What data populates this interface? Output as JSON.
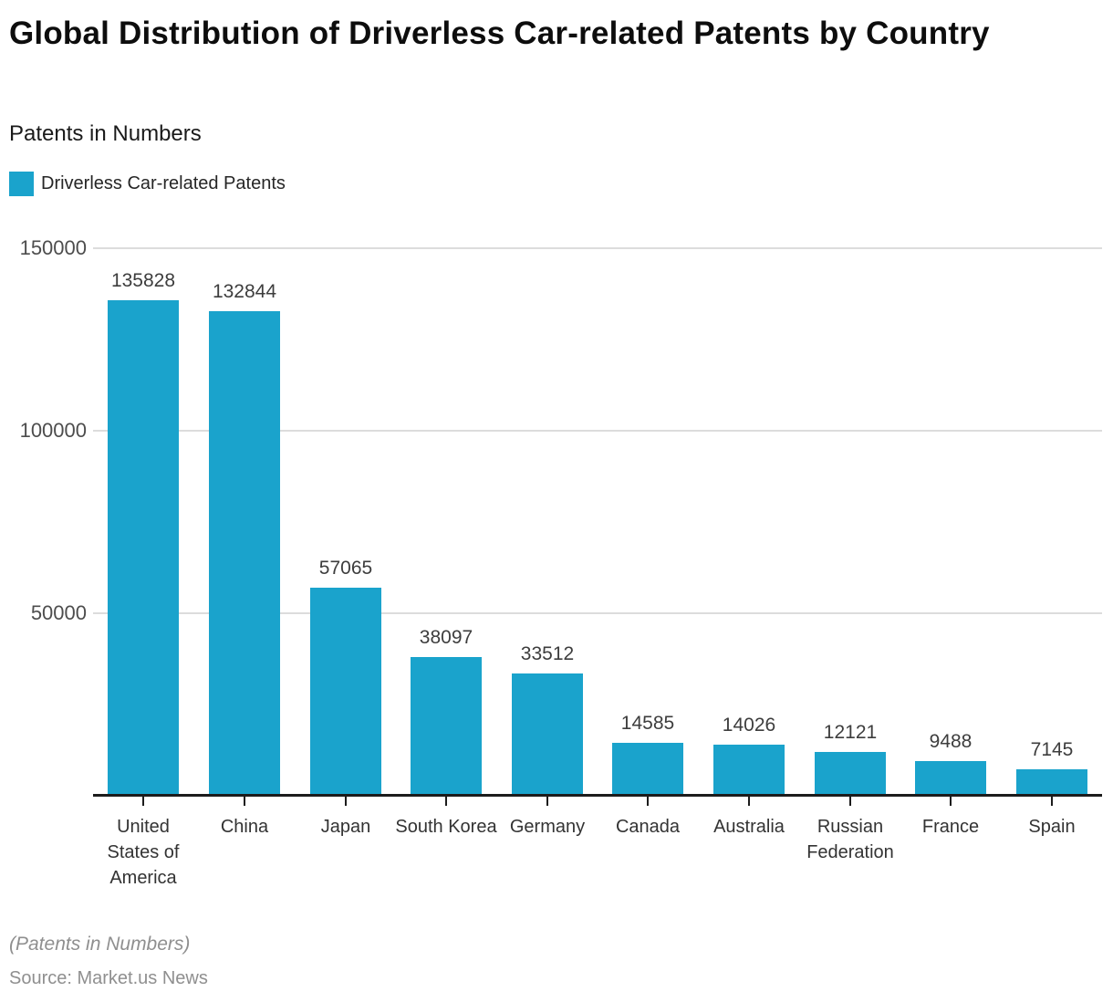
{
  "header": {
    "title": "Global Distribution of Driverless Car-related Patents by Country",
    "subtitle": "Patents in Numbers",
    "legend": {
      "label": "Driverless Car-related Patents",
      "swatch_color": "#1AA3CC"
    }
  },
  "chart_data": {
    "type": "bar",
    "title": "Global Distribution of Driverless Car-related Patents by Country",
    "subtitle": "Patents in Numbers",
    "series_name": "Driverless Car-related Patents",
    "categories": [
      "United States of America",
      "China",
      "Japan",
      "South Korea",
      "Germany",
      "Canada",
      "Australia",
      "Russian Federation",
      "France",
      "Spain"
    ],
    "values": [
      135828,
      132844,
      57065,
      38097,
      33512,
      14585,
      14026,
      12121,
      9488,
      7145
    ],
    "xlabel": "",
    "ylabel": "",
    "ylim": [
      0,
      150000
    ],
    "y_ticks": [
      150000,
      100000,
      50000
    ],
    "grid": "horizontal",
    "legend_position": "top-left",
    "bar_color": "#1AA3CC",
    "value_labels_shown": true
  },
  "footer": {
    "note": "(Patents in Numbers)",
    "source": "Source: Market.us News"
  }
}
